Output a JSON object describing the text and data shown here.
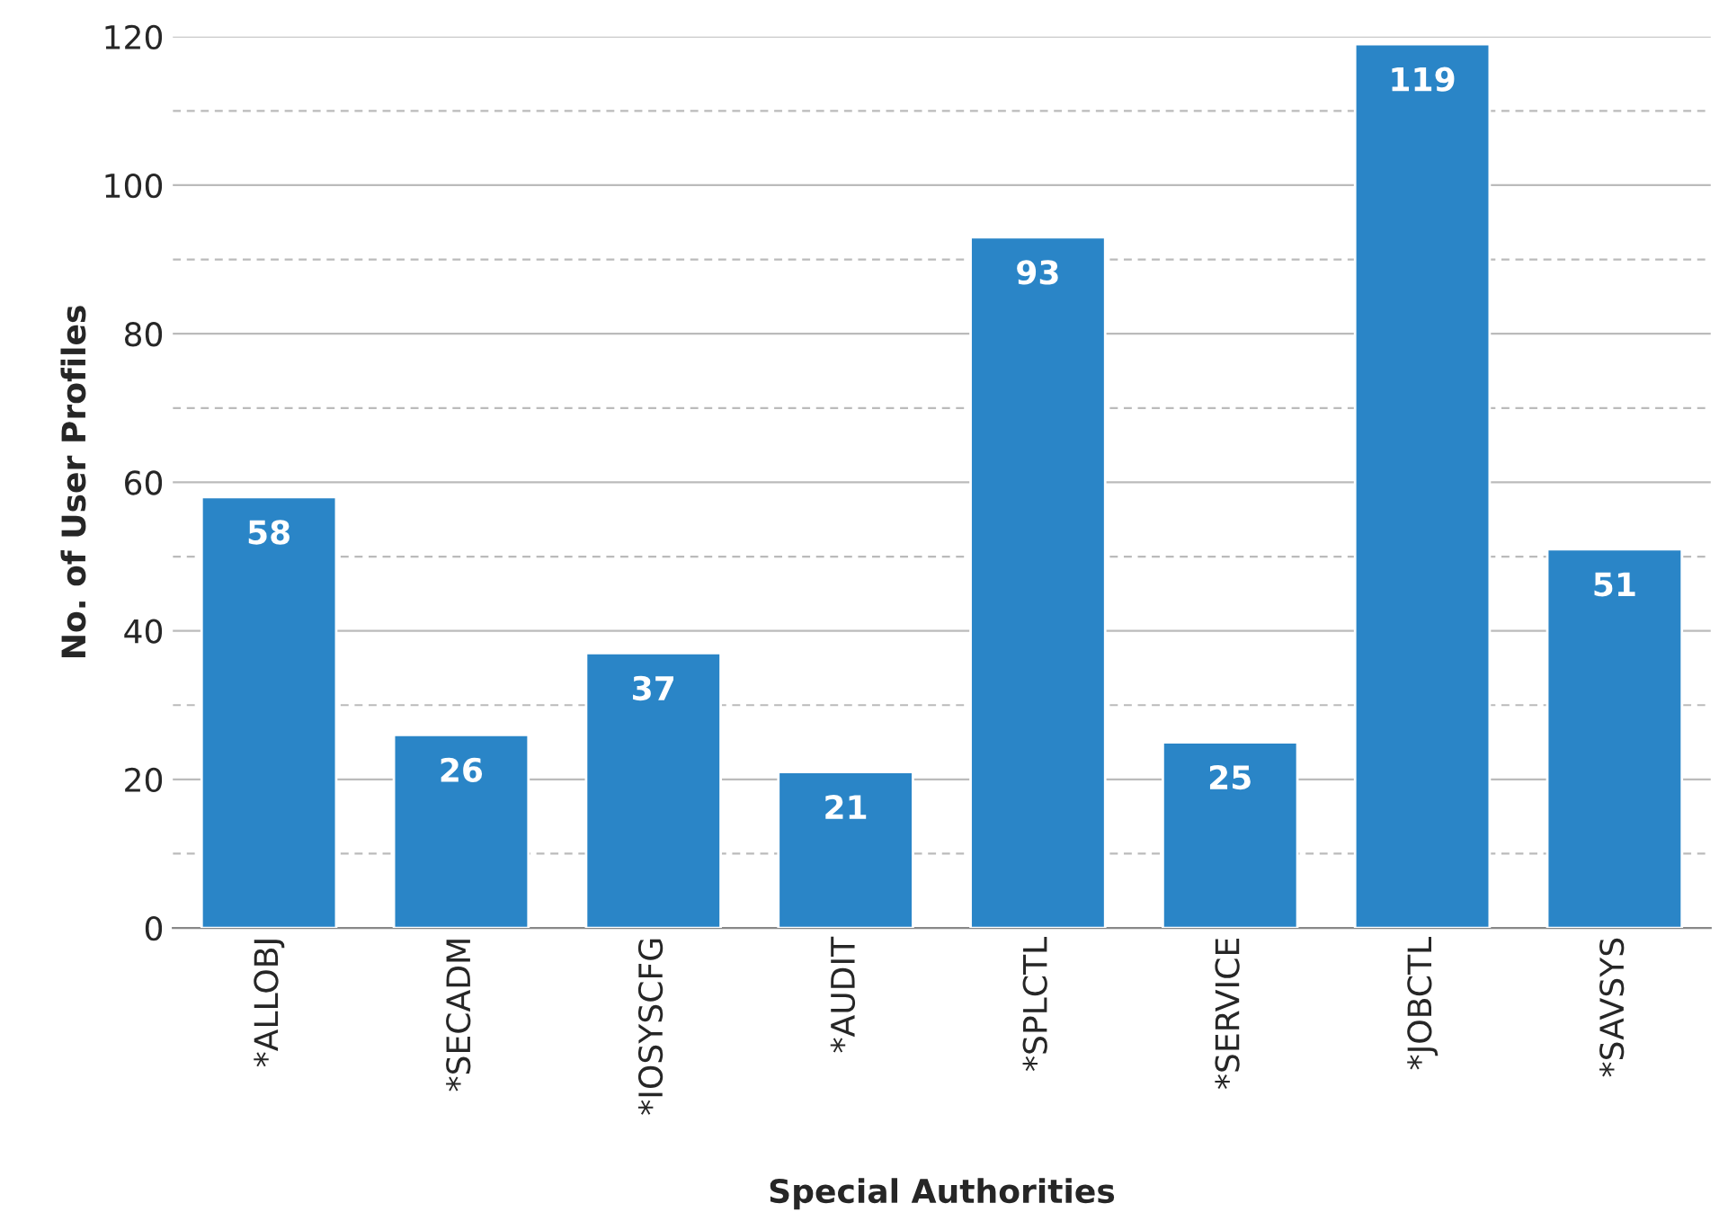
{
  "chart_data": {
    "type": "bar",
    "xlabel": "Special Authorities",
    "ylabel": "No. of User Profiles",
    "categories": [
      "*ALLOBJ",
      "*SECADM",
      "*IOSYSCFG",
      "*AUDIT",
      "*SPLCTL",
      "*SERVICE",
      "*JOBCTL",
      "*SAVSYS"
    ],
    "values": [
      58,
      26,
      37,
      21,
      93,
      25,
      119,
      51
    ],
    "color": "#2a85c7",
    "ylim": [
      0,
      120
    ],
    "yticks": [
      0,
      {
        "value": 10,
        "label": null
      },
      20,
      {
        "value": 30,
        "label": null
      },
      40,
      {
        "value": 50,
        "label": null
      },
      60,
      {
        "value": 70,
        "label": null
      },
      80,
      {
        "value": 90,
        "label": null
      },
      100,
      {
        "value": 110,
        "label": null
      },
      120
    ],
    "grid": "y",
    "data_labels": true
  }
}
